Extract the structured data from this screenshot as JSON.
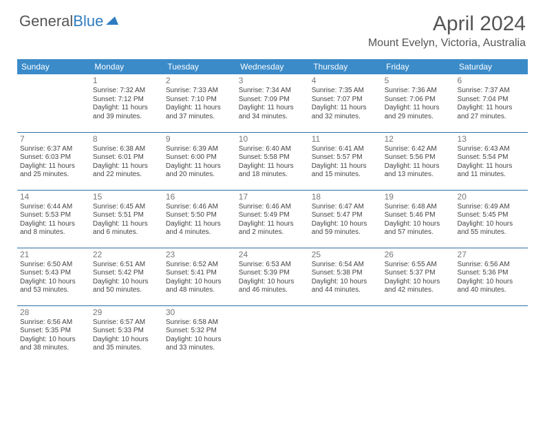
{
  "logo": {
    "text_part1": "General",
    "text_part2": "Blue"
  },
  "header": {
    "title": "April 2024",
    "location": "Mount Evelyn, Victoria, Australia"
  },
  "colors": {
    "header_bg": "#3b8bc9",
    "header_text": "#ffffff",
    "row_border": "#2f6fa3",
    "text": "#444444",
    "daynum": "#777777",
    "title": "#555555"
  },
  "weekdays": [
    "Sunday",
    "Monday",
    "Tuesday",
    "Wednesday",
    "Thursday",
    "Friday",
    "Saturday"
  ],
  "weeks": [
    [
      null,
      {
        "n": "1",
        "sr": "Sunrise: 7:32 AM",
        "ss": "Sunset: 7:12 PM",
        "d1": "Daylight: 11 hours",
        "d2": "and 39 minutes."
      },
      {
        "n": "2",
        "sr": "Sunrise: 7:33 AM",
        "ss": "Sunset: 7:10 PM",
        "d1": "Daylight: 11 hours",
        "d2": "and 37 minutes."
      },
      {
        "n": "3",
        "sr": "Sunrise: 7:34 AM",
        "ss": "Sunset: 7:09 PM",
        "d1": "Daylight: 11 hours",
        "d2": "and 34 minutes."
      },
      {
        "n": "4",
        "sr": "Sunrise: 7:35 AM",
        "ss": "Sunset: 7:07 PM",
        "d1": "Daylight: 11 hours",
        "d2": "and 32 minutes."
      },
      {
        "n": "5",
        "sr": "Sunrise: 7:36 AM",
        "ss": "Sunset: 7:06 PM",
        "d1": "Daylight: 11 hours",
        "d2": "and 29 minutes."
      },
      {
        "n": "6",
        "sr": "Sunrise: 7:37 AM",
        "ss": "Sunset: 7:04 PM",
        "d1": "Daylight: 11 hours",
        "d2": "and 27 minutes."
      }
    ],
    [
      {
        "n": "7",
        "sr": "Sunrise: 6:37 AM",
        "ss": "Sunset: 6:03 PM",
        "d1": "Daylight: 11 hours",
        "d2": "and 25 minutes."
      },
      {
        "n": "8",
        "sr": "Sunrise: 6:38 AM",
        "ss": "Sunset: 6:01 PM",
        "d1": "Daylight: 11 hours",
        "d2": "and 22 minutes."
      },
      {
        "n": "9",
        "sr": "Sunrise: 6:39 AM",
        "ss": "Sunset: 6:00 PM",
        "d1": "Daylight: 11 hours",
        "d2": "and 20 minutes."
      },
      {
        "n": "10",
        "sr": "Sunrise: 6:40 AM",
        "ss": "Sunset: 5:58 PM",
        "d1": "Daylight: 11 hours",
        "d2": "and 18 minutes."
      },
      {
        "n": "11",
        "sr": "Sunrise: 6:41 AM",
        "ss": "Sunset: 5:57 PM",
        "d1": "Daylight: 11 hours",
        "d2": "and 15 minutes."
      },
      {
        "n": "12",
        "sr": "Sunrise: 6:42 AM",
        "ss": "Sunset: 5:56 PM",
        "d1": "Daylight: 11 hours",
        "d2": "and 13 minutes."
      },
      {
        "n": "13",
        "sr": "Sunrise: 6:43 AM",
        "ss": "Sunset: 5:54 PM",
        "d1": "Daylight: 11 hours",
        "d2": "and 11 minutes."
      }
    ],
    [
      {
        "n": "14",
        "sr": "Sunrise: 6:44 AM",
        "ss": "Sunset: 5:53 PM",
        "d1": "Daylight: 11 hours",
        "d2": "and 8 minutes."
      },
      {
        "n": "15",
        "sr": "Sunrise: 6:45 AM",
        "ss": "Sunset: 5:51 PM",
        "d1": "Daylight: 11 hours",
        "d2": "and 6 minutes."
      },
      {
        "n": "16",
        "sr": "Sunrise: 6:46 AM",
        "ss": "Sunset: 5:50 PM",
        "d1": "Daylight: 11 hours",
        "d2": "and 4 minutes."
      },
      {
        "n": "17",
        "sr": "Sunrise: 6:46 AM",
        "ss": "Sunset: 5:49 PM",
        "d1": "Daylight: 11 hours",
        "d2": "and 2 minutes."
      },
      {
        "n": "18",
        "sr": "Sunrise: 6:47 AM",
        "ss": "Sunset: 5:47 PM",
        "d1": "Daylight: 10 hours",
        "d2": "and 59 minutes."
      },
      {
        "n": "19",
        "sr": "Sunrise: 6:48 AM",
        "ss": "Sunset: 5:46 PM",
        "d1": "Daylight: 10 hours",
        "d2": "and 57 minutes."
      },
      {
        "n": "20",
        "sr": "Sunrise: 6:49 AM",
        "ss": "Sunset: 5:45 PM",
        "d1": "Daylight: 10 hours",
        "d2": "and 55 minutes."
      }
    ],
    [
      {
        "n": "21",
        "sr": "Sunrise: 6:50 AM",
        "ss": "Sunset: 5:43 PM",
        "d1": "Daylight: 10 hours",
        "d2": "and 53 minutes."
      },
      {
        "n": "22",
        "sr": "Sunrise: 6:51 AM",
        "ss": "Sunset: 5:42 PM",
        "d1": "Daylight: 10 hours",
        "d2": "and 50 minutes."
      },
      {
        "n": "23",
        "sr": "Sunrise: 6:52 AM",
        "ss": "Sunset: 5:41 PM",
        "d1": "Daylight: 10 hours",
        "d2": "and 48 minutes."
      },
      {
        "n": "24",
        "sr": "Sunrise: 6:53 AM",
        "ss": "Sunset: 5:39 PM",
        "d1": "Daylight: 10 hours",
        "d2": "and 46 minutes."
      },
      {
        "n": "25",
        "sr": "Sunrise: 6:54 AM",
        "ss": "Sunset: 5:38 PM",
        "d1": "Daylight: 10 hours",
        "d2": "and 44 minutes."
      },
      {
        "n": "26",
        "sr": "Sunrise: 6:55 AM",
        "ss": "Sunset: 5:37 PM",
        "d1": "Daylight: 10 hours",
        "d2": "and 42 minutes."
      },
      {
        "n": "27",
        "sr": "Sunrise: 6:56 AM",
        "ss": "Sunset: 5:36 PM",
        "d1": "Daylight: 10 hours",
        "d2": "and 40 minutes."
      }
    ],
    [
      {
        "n": "28",
        "sr": "Sunrise: 6:56 AM",
        "ss": "Sunset: 5:35 PM",
        "d1": "Daylight: 10 hours",
        "d2": "and 38 minutes."
      },
      {
        "n": "29",
        "sr": "Sunrise: 6:57 AM",
        "ss": "Sunset: 5:33 PM",
        "d1": "Daylight: 10 hours",
        "d2": "and 35 minutes."
      },
      {
        "n": "30",
        "sr": "Sunrise: 6:58 AM",
        "ss": "Sunset: 5:32 PM",
        "d1": "Daylight: 10 hours",
        "d2": "and 33 minutes."
      },
      null,
      null,
      null,
      null
    ]
  ]
}
